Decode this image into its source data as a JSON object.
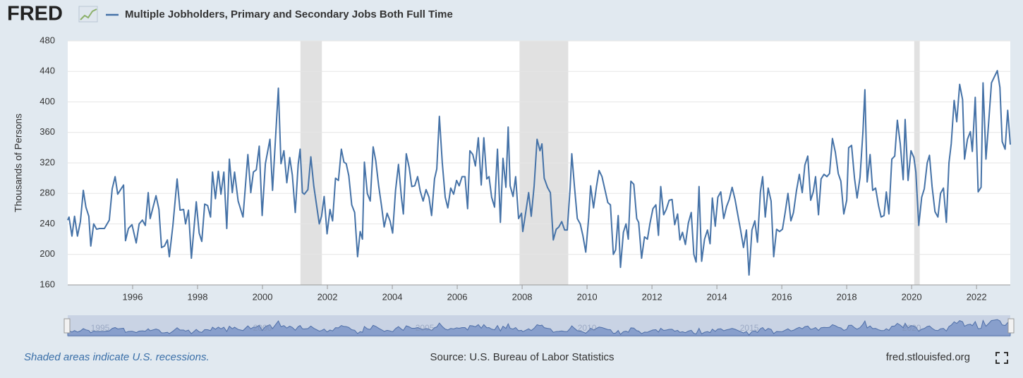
{
  "logo": "FRED",
  "chart_data": {
    "type": "line",
    "y_label": "Thousands of Persons",
    "series": [
      {
        "name": "Multiple Jobholders, Primary and Secondary Jobs Both Full Time",
        "color": "#4572a7",
        "values": [
          245,
          249,
          224,
          250,
          224,
          243,
          284,
          262,
          250,
          211,
          240,
          233,
          234,
          234,
          245,
          286,
          302,
          279,
          291,
          218,
          234,
          239,
          215,
          240,
          245,
          238,
          281,
          247,
          277,
          259,
          209,
          211,
          219,
          197,
          238,
          299,
          258,
          259,
          240,
          258,
          195,
          269,
          228,
          217,
          266,
          264,
          249,
          308,
          273,
          309,
          279,
          308,
          234,
          325,
          281,
          308,
          270,
          249,
          331,
          281,
          308,
          311,
          342,
          251,
          319,
          351,
          284,
          418,
          319,
          336,
          294,
          327,
          304,
          255,
          318,
          338,
          281,
          279,
          285,
          328,
          290,
          240,
          250,
          276,
          227,
          259,
          244,
          300,
          297,
          338,
          321,
          319,
          303,
          265,
          255,
          197,
          230,
          220,
          321,
          280,
          270,
          341,
          323,
          290,
          263,
          236,
          254,
          244,
          228,
          284,
          318,
          275,
          253,
          332,
          314,
          289,
          290,
          302,
          283,
          270,
          285,
          275,
          251,
          299,
          312,
          381,
          320,
          275,
          261,
          287,
          279,
          297,
          290,
          302,
          302,
          260,
          336,
          331,
          316,
          353,
          291,
          353,
          299,
          302,
          275,
          262,
          338,
          242,
          326,
          288,
          367,
          290,
          276,
          302,
          247,
          254,
          230,
          255,
          281,
          250,
          290,
          351,
          336,
          345,
          300,
          288,
          281,
          219,
          233,
          236,
          243,
          232,
          232,
          288,
          332,
          290,
          247,
          240,
          225,
          203,
          248,
          290,
          261,
          289,
          310,
          302,
          285,
          268,
          265,
          200,
          206,
          251,
          183,
          229,
          240,
          220,
          296,
          292,
          247,
          242,
          195,
          223,
          220,
          241,
          260,
          265,
          225,
          289,
          252,
          259,
          271,
          272,
          239,
          253,
          219,
          229,
          213,
          241,
          255,
          200,
          190,
          289,
          191,
          220,
          232,
          214,
          274,
          237,
          275,
          282,
          247,
          263,
          272,
          288,
          272,
          253,
          232,
          209,
          232,
          173,
          232,
          244,
          216,
          282,
          302,
          249,
          287,
          270,
          197,
          233,
          230,
          233,
          254,
          280,
          244,
          255,
          283,
          305,
          281,
          317,
          329,
          271,
          282,
          302,
          252,
          299,
          305,
          302,
          306,
          352,
          334,
          306,
          296,
          253,
          271,
          340,
          343,
          300,
          274,
          301,
          361,
          416,
          295,
          331,
          284,
          287,
          264,
          249,
          251,
          282,
          253,
          325,
          329,
          376,
          345,
          298,
          377,
          297,
          336,
          327,
          308,
          238,
          275,
          286,
          320,
          330,
          289,
          256,
          249,
          280,
          287,
          242,
          320,
          345,
          402,
          374,
          423,
          403,
          325,
          351,
          361,
          335,
          406,
          282,
          288,
          425,
          325,
          377,
          425,
          433,
          441,
          419,
          348,
          338,
          389,
          344
        ]
      }
    ],
    "x": [
      1994.0,
      1994.04,
      1994.13,
      1994.21,
      1994.3,
      1994.39,
      1994.48,
      1994.56,
      1994.65,
      1994.71,
      1994.8,
      1994.89,
      1994.98,
      1995.13,
      1995.28,
      1995.37,
      1995.46,
      1995.54,
      1995.72,
      1995.78,
      1995.87,
      1995.98,
      1996.11,
      1996.2,
      1996.3,
      1996.39,
      1996.48,
      1996.54,
      1996.72,
      1996.81,
      1996.89,
      1996.98,
      1997.07,
      1997.13,
      1997.24,
      1997.37,
      1997.46,
      1997.57,
      1997.63,
      1997.72,
      1997.81,
      1997.96,
      1998.05,
      1998.13,
      1998.22,
      1998.31,
      1998.4,
      1998.46,
      1998.55,
      1998.64,
      1998.72,
      1998.81,
      1998.9,
      1998.98,
      1999.07,
      1999.14,
      1999.25,
      1999.4,
      1999.55,
      1999.64,
      1999.72,
      1999.81,
      1999.9,
      1999.99,
      2000.09,
      2000.23,
      2000.31,
      2000.49,
      2000.57,
      2000.66,
      2000.75,
      2000.84,
      2000.92,
      2001.01,
      2001.1,
      2001.16,
      2001.23,
      2001.29,
      2001.4,
      2001.49,
      2001.58,
      2001.75,
      2001.82,
      2001.9,
      2001.99,
      2002.08,
      2002.16,
      2002.25,
      2002.34,
      2002.43,
      2002.51,
      2002.58,
      2002.66,
      2002.75,
      2002.84,
      2002.93,
      2003.01,
      2003.08,
      2003.14,
      2003.23,
      2003.32,
      2003.41,
      2003.49,
      2003.58,
      2003.67,
      2003.75,
      2003.84,
      2003.93,
      2004.01,
      2004.1,
      2004.19,
      2004.28,
      2004.34,
      2004.43,
      2004.52,
      2004.6,
      2004.69,
      2004.78,
      2004.86,
      2004.95,
      2005.04,
      2005.13,
      2005.21,
      2005.3,
      2005.37,
      2005.45,
      2005.54,
      2005.63,
      2005.71,
      2005.8,
      2005.89,
      2005.98,
      2006.06,
      2006.15,
      2006.24,
      2006.32,
      2006.39,
      2006.48,
      2006.56,
      2006.65,
      2006.74,
      2006.82,
      2006.91,
      2006.98,
      2007.06,
      2007.15,
      2007.24,
      2007.33,
      2007.41,
      2007.5,
      2007.57,
      2007.63,
      2007.72,
      2007.8,
      2007.89,
      2007.98,
      2008.02,
      2008.11,
      2008.2,
      2008.28,
      2008.37,
      2008.46,
      2008.55,
      2008.61,
      2008.68,
      2008.78,
      2008.87,
      2008.96,
      2009.05,
      2009.13,
      2009.22,
      2009.31,
      2009.39,
      2009.48,
      2009.53,
      2009.61,
      2009.7,
      2009.79,
      2009.87,
      2009.96,
      2010.05,
      2010.11,
      2010.2,
      2010.29,
      2010.37,
      2010.46,
      2010.55,
      2010.64,
      2010.72,
      2010.81,
      2010.88,
      2010.96,
      2011.03,
      2011.12,
      2011.2,
      2011.27,
      2011.35,
      2011.44,
      2011.53,
      2011.59,
      2011.68,
      2011.77,
      2011.86,
      2011.94,
      2012.03,
      2012.12,
      2012.2,
      2012.27,
      2012.36,
      2012.44,
      2012.53,
      2012.62,
      2012.7,
      2012.79,
      2012.86,
      2012.94,
      2013.03,
      2013.12,
      2013.21,
      2013.29,
      2013.36,
      2013.45,
      2013.53,
      2013.62,
      2013.71,
      2013.79,
      2013.86,
      2013.95,
      2014.03,
      2014.12,
      2014.21,
      2014.3,
      2014.38,
      2014.47,
      2014.56,
      2014.64,
      2014.73,
      2014.82,
      2014.91,
      2014.99,
      2015.08,
      2015.17,
      2015.25,
      2015.34,
      2015.41,
      2015.49,
      2015.58,
      2015.67,
      2015.75,
      2015.84,
      2015.93,
      2016.02,
      2016.1,
      2016.19,
      2016.28,
      2016.36,
      2016.45,
      2016.54,
      2016.63,
      2016.71,
      2016.8,
      2016.89,
      2016.97,
      2017.04,
      2017.13,
      2017.21,
      2017.3,
      2017.39,
      2017.47,
      2017.56,
      2017.65,
      2017.74,
      2017.82,
      2017.91,
      2018.0,
      2018.06,
      2018.15,
      2018.24,
      2018.32,
      2018.41,
      2018.5,
      2018.56,
      2018.63,
      2018.72,
      2018.8,
      2018.89,
      2018.98,
      2019.06,
      2019.15,
      2019.22,
      2019.3,
      2019.39,
      2019.48,
      2019.56,
      2019.65,
      2019.74,
      2019.8,
      2019.89,
      2019.98,
      2020.07,
      2020.13,
      2020.22,
      2020.31,
      2020.39,
      2020.48,
      2020.55,
      2020.63,
      2020.72,
      2020.81,
      2020.89,
      2020.98,
      2021.07,
      2021.15,
      2021.22,
      2021.31,
      2021.39,
      2021.48,
      2021.57,
      2021.63,
      2021.72,
      2021.81,
      2021.87,
      2021.96,
      2022.05,
      2022.14,
      2022.2,
      2022.29,
      2022.38,
      2022.46,
      2022.55,
      2022.64,
      2022.72,
      2022.79,
      2022.88,
      2022.96,
      2023.04
    ],
    "xlim": [
      1994.0,
      2023.04
    ],
    "xticks": [
      1996,
      1998,
      2000,
      2002,
      2004,
      2006,
      2008,
      2010,
      2012,
      2014,
      2016,
      2018,
      2020,
      2022
    ],
    "ylim": [
      160,
      480
    ],
    "yticks": [
      160,
      200,
      240,
      280,
      320,
      360,
      400,
      440,
      480
    ],
    "grid": true,
    "recessions": [
      [
        2001.17,
        2001.83
      ],
      [
        2007.92,
        2009.42
      ],
      [
        2020.08,
        2020.25
      ]
    ],
    "navigator_ticks": [
      1995,
      2000,
      2005,
      2010,
      2015,
      2020
    ]
  },
  "footer": {
    "note": "Shaded areas indicate U.S. recessions.",
    "source": "Source: U.S. Bureau of Labor Statistics",
    "site": "fred.stlouisfed.org"
  }
}
